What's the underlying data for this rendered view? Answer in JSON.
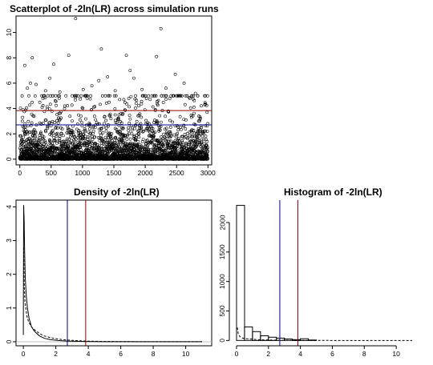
{
  "colors": {
    "blue": "#00008b",
    "red": "#8b0000",
    "black": "#000000",
    "gray": "#bfbfbf"
  },
  "chart_data": [
    {
      "type": "scatter",
      "title": "Scatterplot of -2ln(LR) across simulation runs",
      "xlim": [
        -60,
        3060
      ],
      "ylim": [
        -0.45,
        11.3
      ],
      "x_ticks": [
        0,
        500,
        1000,
        1500,
        2000,
        2500,
        3000
      ],
      "y_ticks": [
        0,
        2,
        4,
        6,
        8,
        10
      ],
      "hlines": [
        {
          "value": 2.71,
          "color": "blue"
        },
        {
          "value": 3.84,
          "color": "red"
        }
      ],
      "n_points": 3000,
      "outliers": [
        [
          80,
          7.4
        ],
        [
          120,
          5.6
        ],
        [
          170,
          6.0
        ],
        [
          200,
          8.0
        ],
        [
          260,
          5.9
        ],
        [
          410,
          5.4
        ],
        [
          480,
          6.4
        ],
        [
          540,
          7.5
        ],
        [
          640,
          5.3
        ],
        [
          780,
          8.2
        ],
        [
          890,
          11.1
        ],
        [
          1010,
          5.5
        ],
        [
          1150,
          5.8
        ],
        [
          1260,
          6.2
        ],
        [
          1300,
          8.7
        ],
        [
          1400,
          6.5
        ],
        [
          1520,
          5.4
        ],
        [
          1700,
          8.2
        ],
        [
          1760,
          7.0
        ],
        [
          1820,
          6.4
        ],
        [
          1950,
          5.5
        ],
        [
          2180,
          8.1
        ],
        [
          2250,
          10.3
        ],
        [
          2330,
          5.6
        ],
        [
          2480,
          6.7
        ],
        [
          2620,
          6.0
        ],
        [
          2800,
          5.2
        ],
        [
          2950,
          4.3
        ]
      ]
    },
    {
      "type": "line",
      "title": "Density of -2ln(LR)",
      "xlim": [
        -0.45,
        11.6
      ],
      "ylim": [
        -0.12,
        4.2
      ],
      "x_ticks": [
        0,
        2,
        4,
        6,
        8,
        10
      ],
      "y_ticks": [
        0,
        1,
        2,
        3,
        4
      ],
      "vlines": [
        {
          "value": 2.71,
          "color": "blue"
        },
        {
          "value": 3.84,
          "color": "red"
        }
      ],
      "series": [
        {
          "style": "solid",
          "x": [
            0.0,
            0.02,
            0.05,
            0.08,
            0.12,
            0.18,
            0.25,
            0.35,
            0.5,
            0.7,
            1.0,
            1.3,
            1.7,
            2.2,
            2.7,
            3.2,
            3.8,
            4.5,
            5.5,
            7.0,
            9.0,
            11.0
          ],
          "y": [
            0.2,
            4.05,
            3.6,
            2.7,
            1.9,
            1.35,
            1.0,
            0.7,
            0.45,
            0.3,
            0.17,
            0.1,
            0.06,
            0.035,
            0.02,
            0.012,
            0.007,
            0.004,
            0.002,
            0.001,
            0.0,
            0.0
          ]
        },
        {
          "style": "dashed",
          "x": [
            0.02,
            0.05,
            0.1,
            0.2,
            0.3,
            0.5,
            0.7,
            1.0,
            1.3,
            1.7,
            2.2,
            2.7,
            3.2,
            4.0,
            5.0,
            6.5,
            8.5,
            11.0
          ],
          "y": [
            2.8,
            1.78,
            1.2,
            0.8,
            0.62,
            0.44,
            0.35,
            0.24,
            0.17,
            0.12,
            0.075,
            0.05,
            0.034,
            0.018,
            0.008,
            0.003,
            0.001,
            0.0
          ]
        }
      ]
    },
    {
      "type": "bar",
      "title": "Histogram of -2ln(LR)",
      "xlim": [
        -0.45,
        11.6
      ],
      "ylim": [
        -90,
        2380
      ],
      "x_ticks": [
        0,
        2,
        4,
        6,
        8,
        10
      ],
      "y_ticks": [
        0,
        500,
        1000,
        1500,
        2000
      ],
      "bin_edges": [
        0,
        0.5,
        1.0,
        1.5,
        2.0,
        2.5,
        3.0,
        3.5,
        4.0,
        4.5,
        5.0
      ],
      "values": [
        2290,
        230,
        150,
        80,
        55,
        40,
        25,
        15,
        30,
        8
      ],
      "vlines": [
        {
          "value": 2.71,
          "color": "blue"
        },
        {
          "value": 3.84,
          "color": "red"
        }
      ],
      "density_curve": {
        "x": [
          0.05,
          0.1,
          0.2,
          0.35,
          0.5,
          0.8,
          1.2,
          1.7,
          2.3,
          3.0,
          4.0,
          5.5,
          8.0,
          11.0
        ],
        "y": [
          220,
          120,
          70,
          45,
          34,
          25,
          17,
          11,
          7,
          4,
          2,
          1,
          0,
          0
        ]
      }
    }
  ]
}
